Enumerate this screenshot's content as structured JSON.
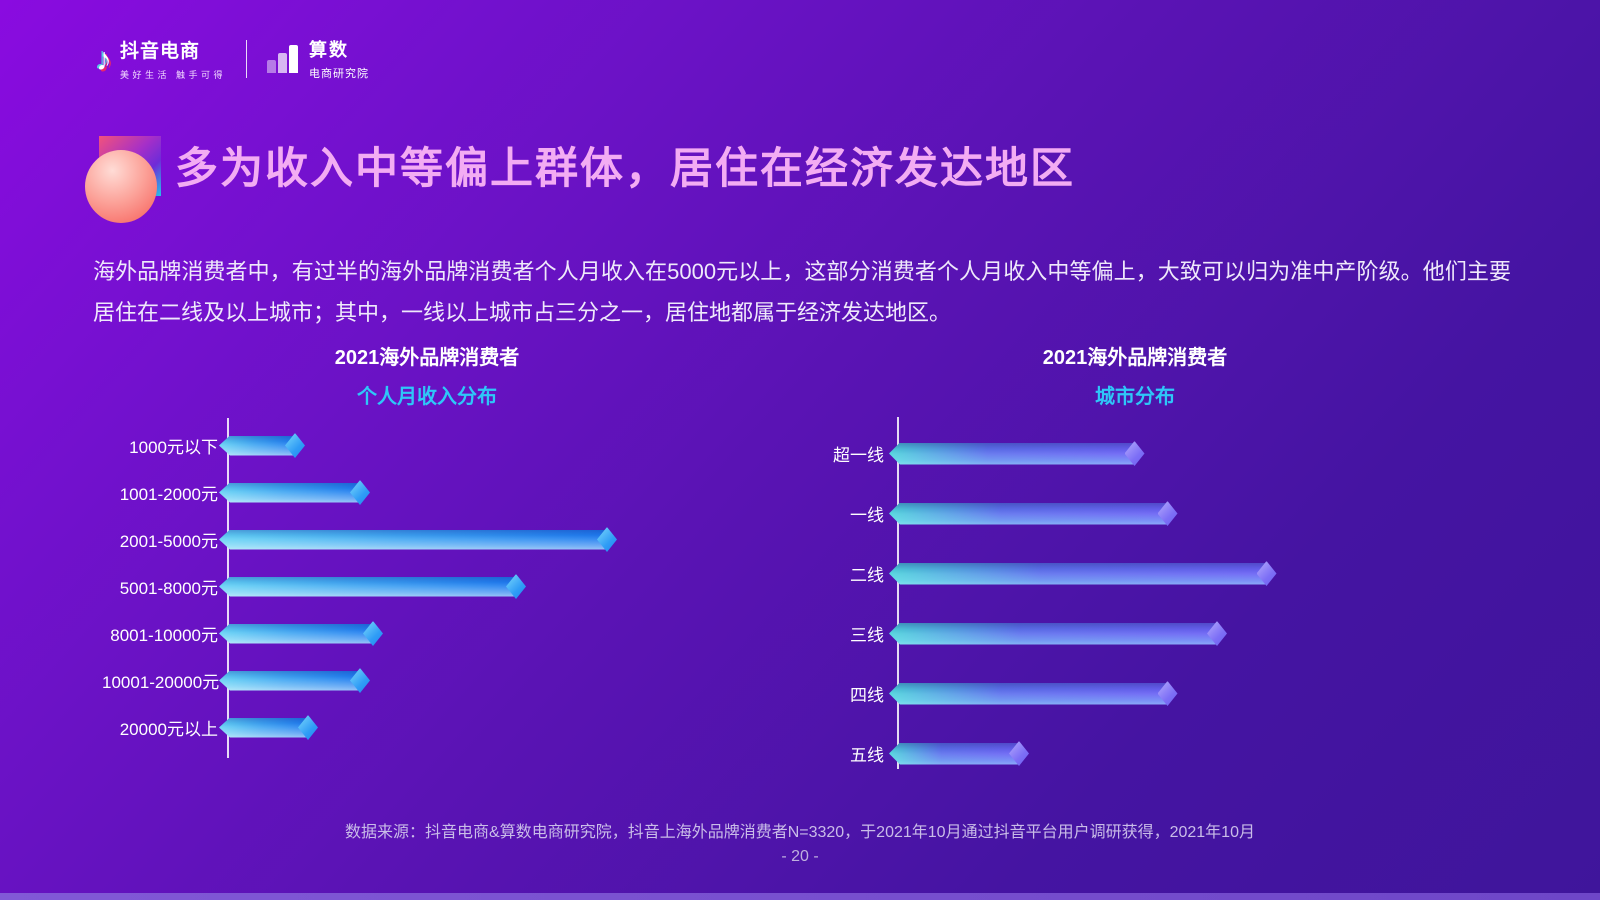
{
  "brand": {
    "douyin": {
      "icon": "music-note-icon",
      "name": "抖音电商",
      "slogan": "美好生活 触手可得"
    },
    "suanshu": {
      "icon": "bar-chart-icon",
      "name": "算数",
      "sub": "电商研究院"
    }
  },
  "title": "多为收入中等偏上群体，居住在经济发达地区",
  "intro": "海外品牌消费者中，有过半的海外品牌消费者个人月收入在5000元以上，这部分消费者个人月收入中等偏上，大致可以归为准中产阶级。他们主要居住在二线及以上城市；其中，一线以上城市占三分之一，居住地都属于经济发达地区。",
  "chart_data": [
    {
      "type": "bar",
      "orientation": "horizontal",
      "title": "2021海外品牌消费者",
      "subtitle": "个人月收入分布",
      "categories": [
        "1000元以下",
        "1001-2000元",
        "2001-5000元",
        "5001-8000元",
        "8001-10000元",
        "10001-20000元",
        "20000元以上"
      ],
      "values": [
        6,
        11,
        30,
        23,
        12,
        11,
        7
      ],
      "unit": "%",
      "value_labels_shown": false,
      "values_estimated_from_bar_lengths": true,
      "grid": false,
      "legend": "none"
    },
    {
      "type": "bar",
      "orientation": "horizontal",
      "title": "2021海外品牌消费者",
      "subtitle": "城市分布",
      "categories": [
        "超一线",
        "一线",
        "二线",
        "三线",
        "四线",
        "五线"
      ],
      "values": [
        15,
        17,
        23,
        20,
        17,
        8
      ],
      "unit": "%",
      "value_labels_shown": false,
      "values_estimated_from_bar_lengths": true,
      "grid": false,
      "legend": "none"
    }
  ],
  "footer": {
    "source": "数据来源：抖音电商&算数电商研究院，抖音上海外品牌消费者N=3320，于2021年10月通过抖音平台用户调研获得，2021年10月",
    "page": "- 20 -"
  },
  "colors": {
    "background_top_left": "#8a0be0",
    "background_bottom_right": "#3f159b",
    "title_pink": "#f3acf3",
    "accent_cyan": "#2ec7f8",
    "income_bar_gradient": [
      "#62d2f4",
      "#1e7bf0"
    ],
    "city_bar_gradient": [
      "#4ed4dc",
      "#6b62f5"
    ],
    "income_diamond": "#2f9cf6",
    "city_diamond": "#7c6ef6",
    "deco_gradient": [
      "#f2527c",
      "#a52fc8",
      "#25c3ea"
    ],
    "deco_circle": "#f8766f",
    "axis_line": "#ffffff"
  }
}
